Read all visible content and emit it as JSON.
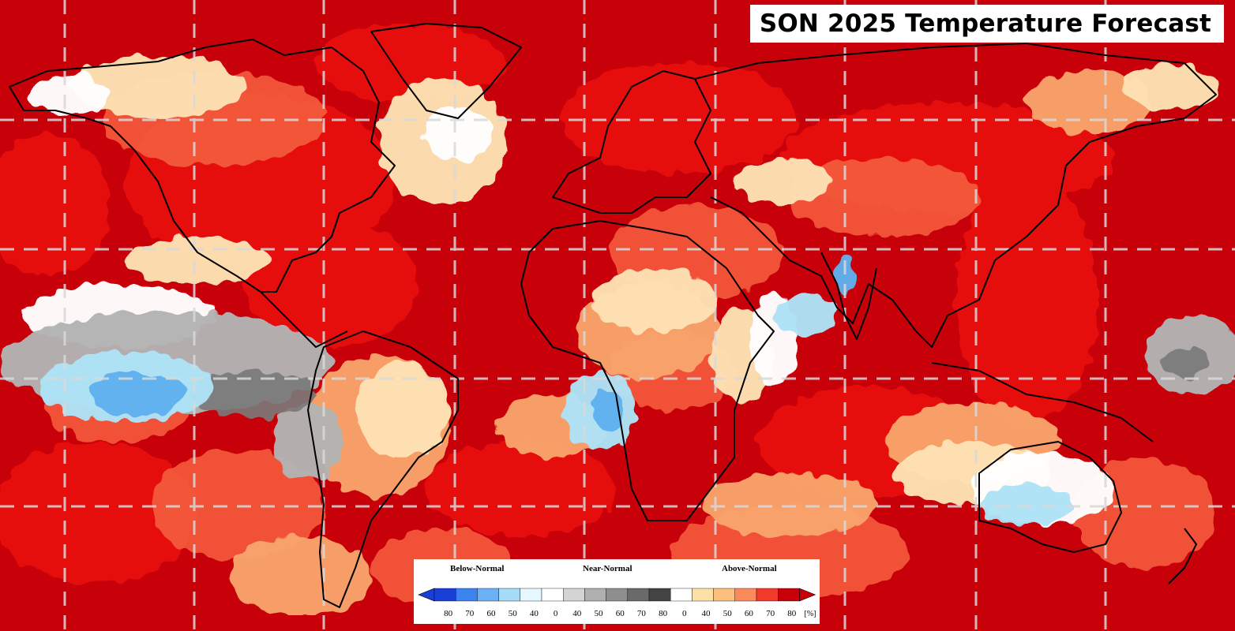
{
  "title": "SON 2025 Temperature Forecast",
  "legend": {
    "categories": [
      {
        "label": "Below-Normal",
        "colors": [
          "#1a3fd6",
          "#3c83f0",
          "#6cb1f5",
          "#a6dcf7",
          "#e6f8ff"
        ]
      },
      {
        "label": "Near-Normal",
        "colors": [
          "#ffffff",
          "#d4d4d4",
          "#b0b0b0",
          "#8e8e8e",
          "#6a6a6a",
          "#444444"
        ]
      },
      {
        "label": "Above-Normal",
        "colors": [
          "#ffffff",
          "#fde0a6",
          "#fcbf7e",
          "#fa8a5c",
          "#f23a2c",
          "#c8000a"
        ]
      }
    ],
    "ticks": [
      "80",
      "70",
      "60",
      "50",
      "40",
      "0",
      "40",
      "50",
      "60",
      "70",
      "80",
      "0",
      "40",
      "50",
      "60",
      "70",
      "80"
    ],
    "unit": "[%]"
  },
  "map_colors": {
    "ocean_base": "#c8000a",
    "strong_above": "#e8100e",
    "mid_above": "#f4583a",
    "light_above": "#f9a66d",
    "pale_above": "#fde2b4",
    "near_normal": "#ffffff",
    "near_normal_grey": "#b3b3b3",
    "near_normal_dark": "#7a7a7a",
    "below_light": "#aee3f6",
    "below_mid": "#5eb1ee",
    "gridline": "#d9d9d9",
    "coastline": "#000000"
  }
}
